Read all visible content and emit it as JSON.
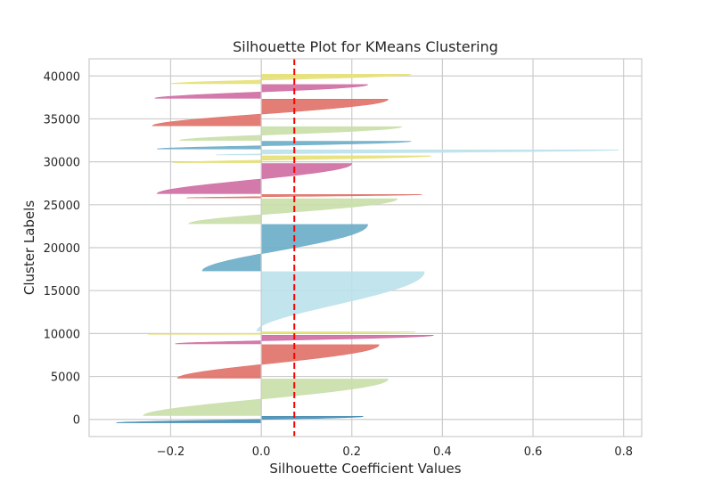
{
  "chart_data": {
    "type": "area",
    "title": "Silhouette Plot for KMeans Clustering",
    "xlabel": "Silhouette Coefficient Values",
    "ylabel": "Cluster Labels",
    "xlim": [
      -0.38,
      0.84
    ],
    "ylim": [
      -2000,
      42000
    ],
    "xticks": [
      -0.2,
      0.0,
      0.2,
      0.4,
      0.6,
      0.8
    ],
    "xtick_labels": [
      "−0.2",
      "0.0",
      "0.2",
      "0.4",
      "0.6",
      "0.8"
    ],
    "yticks": [
      0,
      5000,
      10000,
      15000,
      20000,
      25000,
      30000,
      35000,
      40000
    ],
    "ytick_labels": [
      "0",
      "5000",
      "10000",
      "15000",
      "20000",
      "25000",
      "30000",
      "35000",
      "40000"
    ],
    "grid": true,
    "average_silhouette": 0.073,
    "average_line_color": "#ff0000",
    "clusters": [
      {
        "lower": -400,
        "upper": 350,
        "min": -0.32,
        "max": 0.225,
        "color": "#4c8fb5"
      },
      {
        "lower": 450,
        "upper": 4700,
        "min": -0.26,
        "max": 0.28,
        "color": "#c9dfa9"
      },
      {
        "lower": 4800,
        "upper": 8700,
        "min": -0.185,
        "max": 0.26,
        "color": "#e0736a"
      },
      {
        "lower": 8800,
        "upper": 9800,
        "min": -0.19,
        "max": 0.38,
        "color": "#cf6fa4"
      },
      {
        "lower": 9900,
        "upper": 10200,
        "min": -0.25,
        "max": 0.34,
        "color": "#e6e17a"
      },
      {
        "lower": 10300,
        "upper": 17200,
        "min": -0.01,
        "max": 0.36,
        "color": "#bde2ec"
      },
      {
        "lower": 17300,
        "upper": 22700,
        "min": -0.13,
        "max": 0.235,
        "color": "#6eaec9"
      },
      {
        "lower": 22800,
        "upper": 25700,
        "min": -0.16,
        "max": 0.3,
        "color": "#c9dfa9"
      },
      {
        "lower": 25800,
        "upper": 26200,
        "min": -0.165,
        "max": 0.355,
        "color": "#e0736a"
      },
      {
        "lower": 26300,
        "upper": 29800,
        "min": -0.23,
        "max": 0.2,
        "color": "#cf6fa4"
      },
      {
        "lower": 29900,
        "upper": 30700,
        "min": -0.195,
        "max": 0.375,
        "color": "#e6e17a"
      },
      {
        "lower": 30800,
        "upper": 31400,
        "min": -0.1,
        "max": 0.79,
        "color": "#bde2ec"
      },
      {
        "lower": 31500,
        "upper": 32400,
        "min": -0.23,
        "max": 0.33,
        "color": "#6eaec9"
      },
      {
        "lower": 32500,
        "upper": 34100,
        "min": -0.18,
        "max": 0.31,
        "color": "#c9dfa9"
      },
      {
        "lower": 34200,
        "upper": 37300,
        "min": -0.24,
        "max": 0.28,
        "color": "#e0736a"
      },
      {
        "lower": 37400,
        "upper": 39000,
        "min": -0.235,
        "max": 0.235,
        "color": "#cf6fa4"
      },
      {
        "lower": 39100,
        "upper": 40200,
        "min": -0.2,
        "max": 0.33,
        "color": "#e6e17a"
      }
    ]
  }
}
